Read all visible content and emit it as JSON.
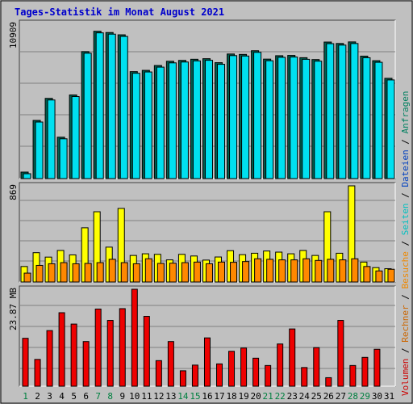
{
  "chart_data": {
    "type": "bar",
    "title": "Tages-Statistik im Monat August 2021",
    "categories": [
      "1",
      "2",
      "3",
      "4",
      "5",
      "6",
      "7",
      "8",
      "9",
      "10",
      "11",
      "12",
      "13",
      "14",
      "15",
      "16",
      "17",
      "18",
      "19",
      "20",
      "21",
      "22",
      "23",
      "24",
      "25",
      "26",
      "27",
      "28",
      "29",
      "30",
      "31"
    ],
    "weekend_days": [
      1,
      7,
      8,
      14,
      15,
      21,
      22,
      28,
      29
    ],
    "panels": [
      {
        "id": "top",
        "max_label": "10909",
        "ymax": 10909,
        "series": [
          {
            "name": "Anfragen",
            "color": "#00a070",
            "values": [
              455,
              4090,
              5640,
              2910,
              5880,
              8930,
              10360,
              10270,
              10110,
              7520,
              7610,
              7950,
              8250,
              8310,
              8390,
              8430,
              8150,
              8760,
              8730,
              8990,
              8400,
              8640,
              8660,
              8500,
              8370,
              9600,
              9500,
              9610,
              8610,
              8290,
              7050
            ]
          },
          {
            "name": "Dateien",
            "color": "#00e0f0",
            "values": [
              455,
              4090,
              5640,
              2910,
              5880,
              8930,
              10360,
              10270,
              10110,
              7520,
              7610,
              7950,
              8250,
              8310,
              8390,
              8430,
              8150,
              8760,
              8730,
              8990,
              8400,
              8640,
              8660,
              8500,
              8370,
              9600,
              9500,
              9610,
              8610,
              8290,
              7050
            ]
          }
        ]
      },
      {
        "id": "middle",
        "max_label": "869",
        "ymax": 869,
        "series": [
          {
            "name": "Seiten",
            "color": "#ffff00",
            "values": [
              140,
              265,
              225,
              285,
              245,
              490,
              635,
              315,
              665,
              240,
              255,
              250,
              200,
              250,
              235,
              198,
              226,
              283,
              247,
              260,
              280,
              270,
              255,
              285,
              240,
              635,
              260,
              869,
              180,
              130,
              120
            ]
          },
          {
            "name": "Besuche",
            "color": "#ff8800",
            "values": [
              80,
              150,
              165,
              175,
              165,
              168,
              175,
              205,
              175,
              165,
              210,
              168,
              170,
              175,
              180,
              165,
              180,
              178,
              185,
              210,
              205,
              200,
              200,
              210,
              195,
              205,
              200,
              210,
              140,
              100,
              115
            ]
          }
        ]
      },
      {
        "id": "bottom",
        "max_label": "23.87 MB",
        "ymax": 23.87,
        "series": [
          {
            "name": "Rechner",
            "color": "#d00000",
            "values": []
          },
          {
            "name": "Volumen",
            "color": "#ee0000",
            "values": [
              11.8,
              6.6,
              13.7,
              18.1,
              15.3,
              11.0,
              19.0,
              16.2,
              19.1,
              23.87,
              17.2,
              6.3,
              11.0,
              3.8,
              5.2,
              11.9,
              5.5,
              8.6,
              9.4,
              6.9,
              5.1,
              10.4,
              14.1,
              4.6,
              9.5,
              2.1,
              16.2,
              5.1,
              7.1,
              9.1,
              0.0
            ]
          }
        ]
      }
    ],
    "legend_order": [
      "Volumen",
      "Rechner",
      "Besuche",
      "Seiten",
      "Dateien",
      "Anfragen"
    ],
    "legend_separator": " / "
  },
  "colors": {
    "background": "#c0c0c0",
    "title": "#0000cc",
    "axis_text": "#000000",
    "weekend_text": "#008040",
    "grid": "#808080",
    "panel_border": "#404040"
  }
}
